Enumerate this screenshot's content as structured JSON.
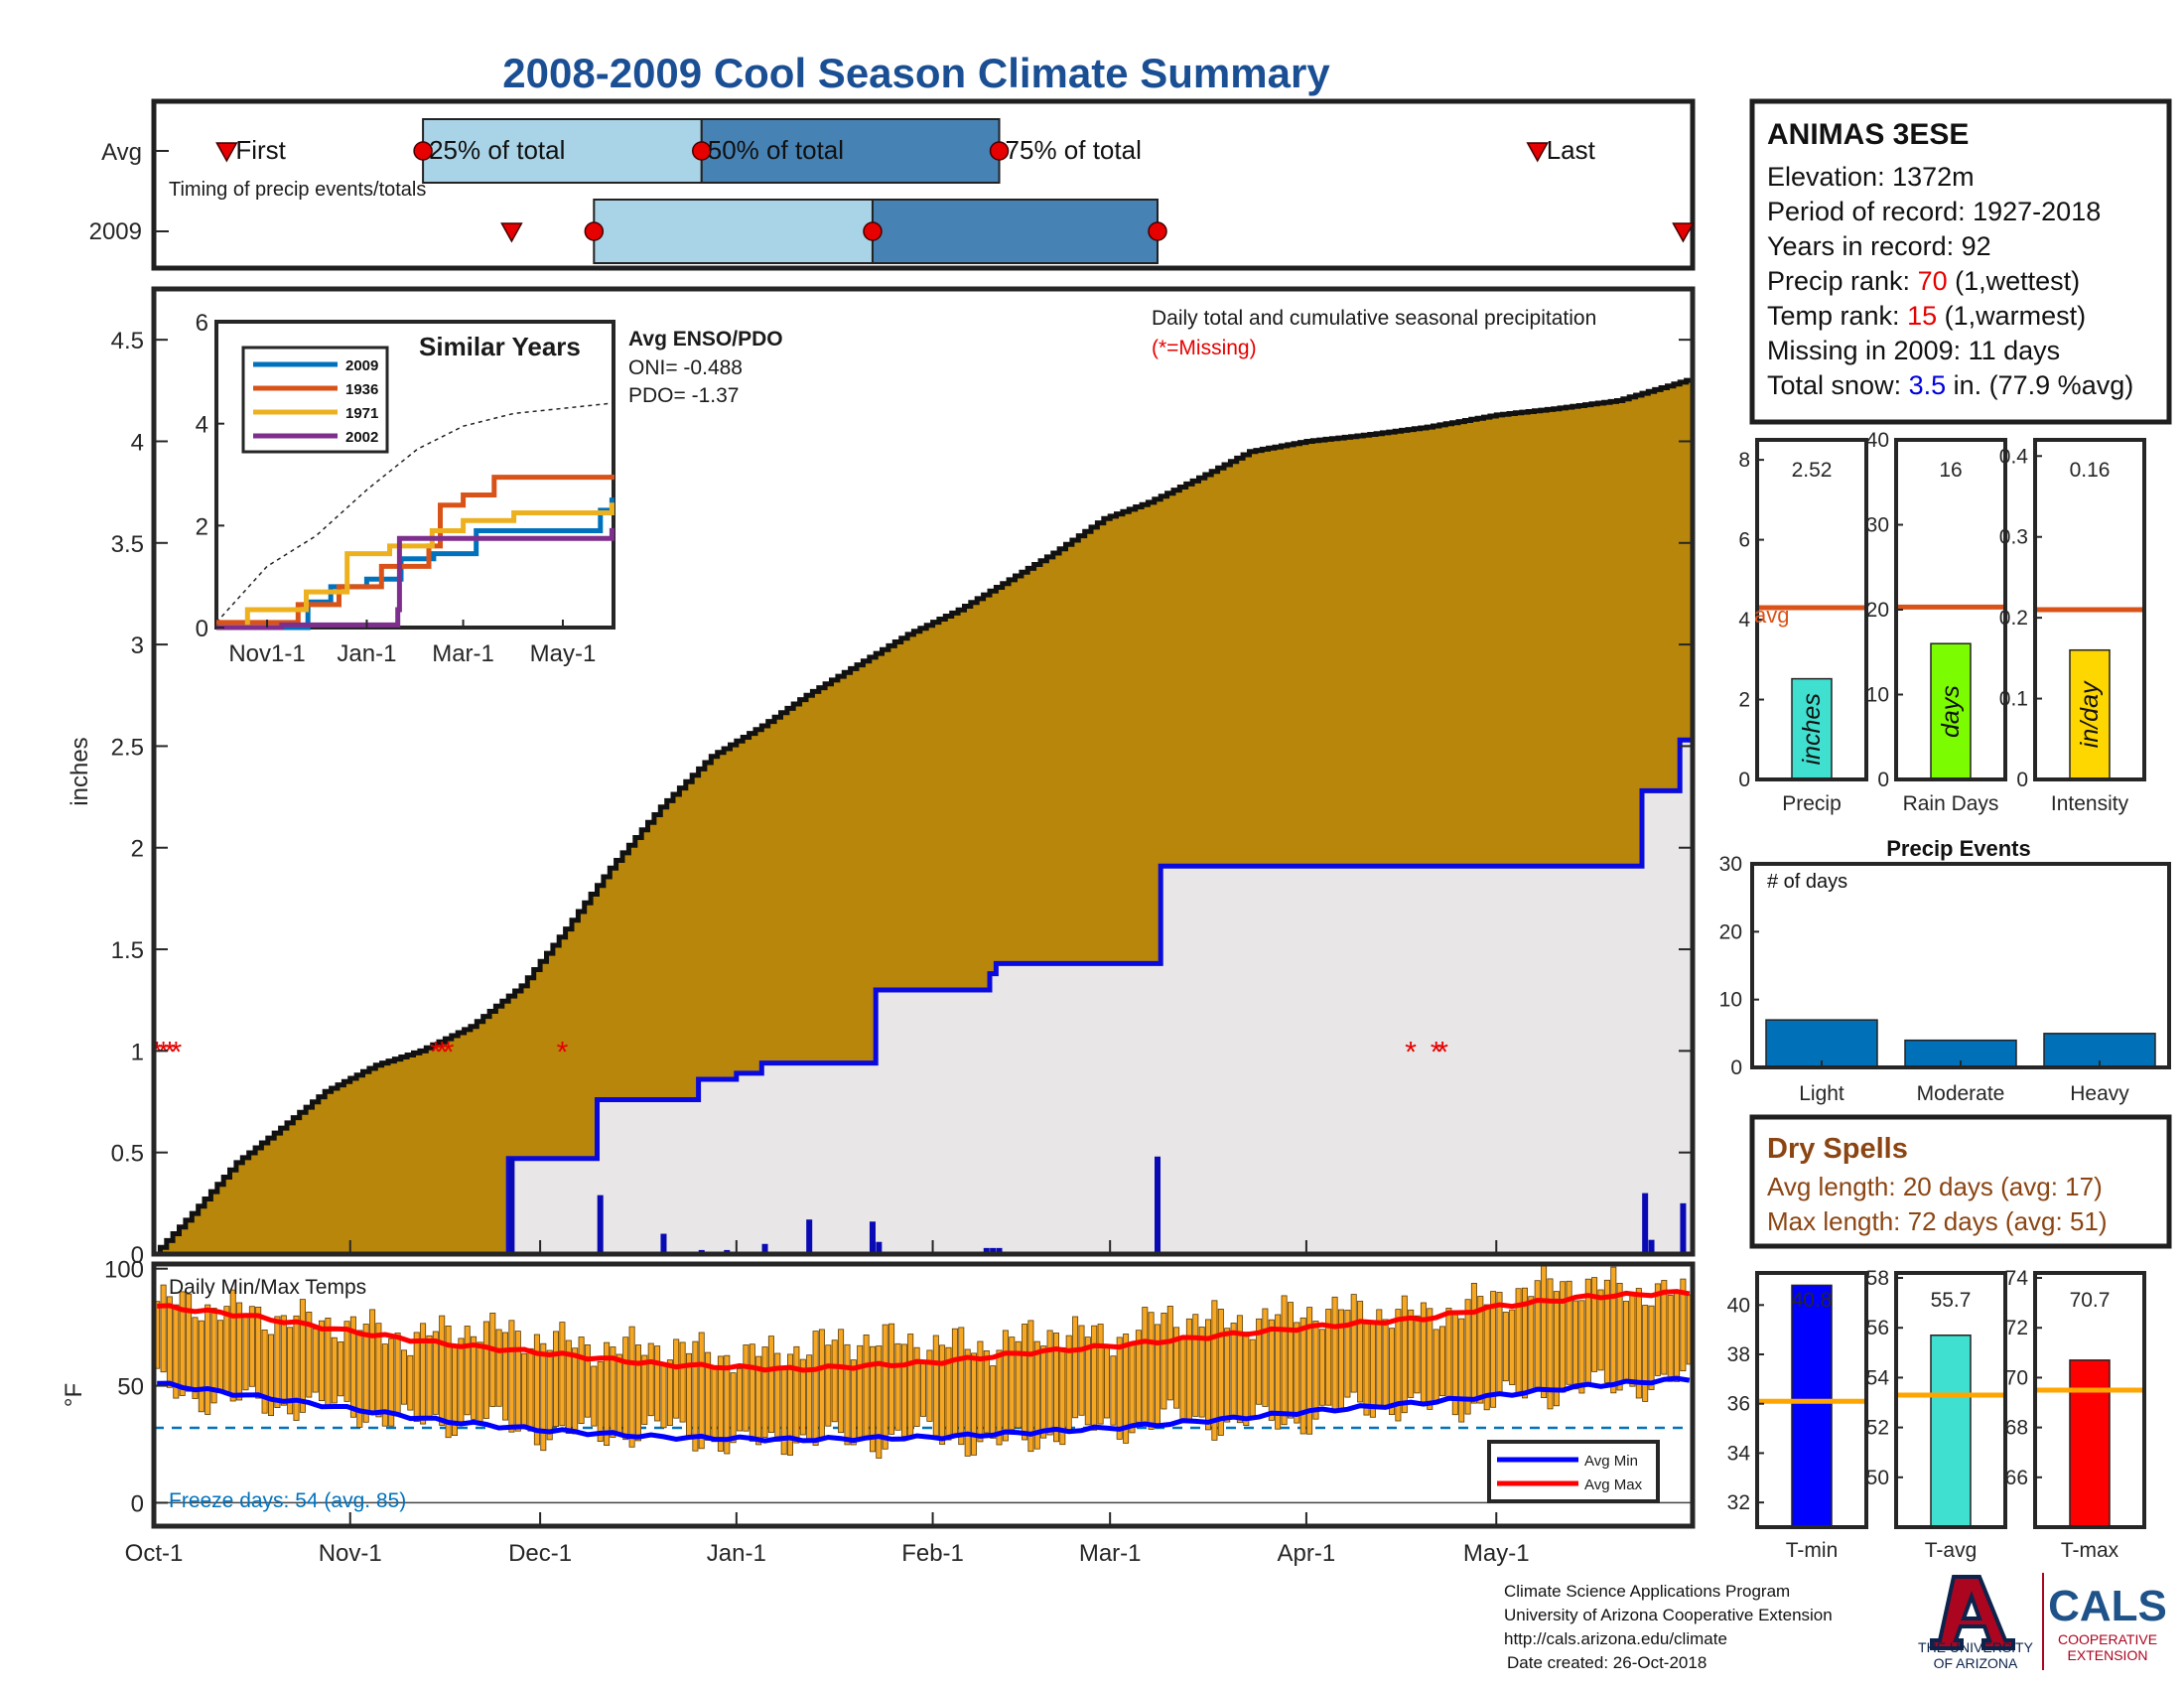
{
  "title": "2008-2009 Cool Season Climate Summary",
  "timing": {
    "row_labels": [
      "Avg",
      "2009"
    ],
    "label_timing": "Timing of precip events/totals",
    "label_first": "First",
    "label_25": "25% of total",
    "label_50": "50% of total",
    "label_75": "75% of total",
    "label_last": "Last",
    "avg": {
      "first": "2008-10-12",
      "p25": "2008-11-12",
      "p50": "2008-12-26",
      "p75": "2009-02-11",
      "last": "2009-05-07"
    },
    "y2009": {
      "first": "2008-11-26",
      "p25": "2008-12-09",
      "p50": "2009-01-22",
      "p75": "2009-03-08",
      "last": "2009-05-30"
    }
  },
  "station": {
    "name": "ANIMAS 3ESE",
    "elevation_text": "Elevation: 1372m",
    "period_text": "Period of record: 1927-2018",
    "years_text": "Years in record: 92",
    "precip_rank_label": "Precip rank: ",
    "precip_rank_value": "70",
    "precip_rank_note": " (1,wettest)",
    "temp_rank_label": "Temp rank: ",
    "temp_rank_value": "15",
    "temp_rank_note": " (1,warmest)",
    "missing_text": "Missing in 2009: 11 days",
    "snow_label": "Total snow: ",
    "snow_value": "3.5",
    "snow_note": " in. (77.9 %avg)"
  },
  "dry_spells": {
    "title": "Dry Spells",
    "avg_text": "Avg length: 20 days (avg: 17)",
    "max_text": "Max length: 72 days (avg: 51)"
  },
  "footer": {
    "line1": "Climate Science Applications Program",
    "line2": "University of Arizona Cooperative Extension",
    "line3": "http://cals.arizona.edu/climate",
    "line4": "Date created: 26-Oct-2018",
    "ua_line1": "THE UNIVERSITY",
    "ua_line2": "OF ARIZONA",
    "cals": "CALS",
    "cals_line1": "COOPERATIVE",
    "cals_line2": "EXTENSION"
  },
  "colors": {
    "title": "#1a4f94",
    "cumulative_fill": "#b8860b",
    "avg_fill": "#e8e6e6",
    "avg_line": "#0a0adc",
    "light_blue": "#a9d3e6",
    "mid_blue": "#4682b4",
    "marker_red": "#e60000",
    "tmin": "#0000ff",
    "tavg": "#40e0d0",
    "tmax": "#ff0000",
    "temp_bar": "#f5a623",
    "avg_ref": "#d95319",
    "freeze_text": "#0072bd"
  },
  "chart_data": [
    {
      "id": "precip-main",
      "type": "area",
      "x_type": "date",
      "ylabel": "inches",
      "ylim": [
        0,
        4.75
      ],
      "yticks": [
        0,
        0.5,
        1,
        1.5,
        2,
        2.5,
        3,
        3.5,
        4,
        4.5
      ],
      "xticks": [
        "Oct-1",
        "Nov-1",
        "Dec-1",
        "Jan-1",
        "Feb-1",
        "Mar-1",
        "Apr-1",
        "May-1"
      ],
      "xtick_dates": [
        "2008-10-01",
        "2008-11-01",
        "2008-12-01",
        "2009-01-01",
        "2009-02-01",
        "2009-03-01",
        "2009-04-01",
        "2009-05-01"
      ],
      "xlim": [
        "2008-10-01",
        "2009-05-31"
      ],
      "annotation": "Daily total and cumulative seasonal precipitation",
      "annotation_missing": "(*=Missing)",
      "avg_cumulative": {
        "name": "Avg cumulative",
        "x": [
          "2008-10-01",
          "2008-10-07",
          "2008-10-14",
          "2008-10-21",
          "2008-10-28",
          "2008-11-05",
          "2008-11-12",
          "2008-11-20",
          "2008-11-28",
          "2008-12-05",
          "2008-12-12",
          "2008-12-20",
          "2008-12-28",
          "2009-01-05",
          "2009-01-12",
          "2009-01-20",
          "2009-01-28",
          "2009-02-05",
          "2009-02-12",
          "2009-02-20",
          "2009-02-28",
          "2009-03-07",
          "2009-03-15",
          "2009-03-23",
          "2009-04-01",
          "2009-04-10",
          "2009-04-20",
          "2009-05-01",
          "2009-05-10",
          "2009-05-20",
          "2009-05-31"
        ],
        "y": [
          0.0,
          0.2,
          0.45,
          0.62,
          0.8,
          0.93,
          1.0,
          1.12,
          1.32,
          1.6,
          1.9,
          2.2,
          2.45,
          2.6,
          2.75,
          2.9,
          3.05,
          3.17,
          3.3,
          3.45,
          3.62,
          3.7,
          3.82,
          3.95,
          4.0,
          4.03,
          4.07,
          4.13,
          4.16,
          4.2,
          4.3
        ]
      },
      "cumulative_2009": {
        "name": "2009 cumulative",
        "x": [
          "2008-10-01",
          "2008-11-25",
          "2008-11-26",
          "2008-12-09",
          "2008-12-10",
          "2008-12-20",
          "2008-12-26",
          "2009-01-01",
          "2009-01-05",
          "2009-01-22",
          "2009-01-23",
          "2009-02-10",
          "2009-02-11",
          "2009-03-08",
          "2009-03-09",
          "2009-05-23",
          "2009-05-24",
          "2009-05-29",
          "2009-05-30",
          "2009-05-31"
        ],
        "y": [
          0.0,
          0.0,
          0.47,
          0.47,
          0.76,
          0.76,
          0.86,
          0.89,
          0.94,
          0.94,
          1.3,
          1.38,
          1.43,
          1.43,
          1.91,
          1.91,
          2.28,
          2.28,
          2.53,
          2.53
        ]
      },
      "daily_2009": {
        "name": "Daily total",
        "dates": [
          "2008-11-26",
          "2008-12-10",
          "2008-12-20",
          "2008-12-26",
          "2008-12-30",
          "2009-01-05",
          "2009-01-12",
          "2009-01-22",
          "2009-01-23",
          "2009-02-09",
          "2009-02-10",
          "2009-02-11",
          "2009-03-08",
          "2009-05-24",
          "2009-05-25",
          "2009-05-30"
        ],
        "values": [
          0.47,
          0.29,
          0.1,
          0.02,
          0.02,
          0.05,
          0.17,
          0.16,
          0.06,
          0.03,
          0.03,
          0.03,
          0.48,
          0.3,
          0.07,
          0.25
        ]
      },
      "missing_days": [
        "2008-10-01",
        "2008-10-02",
        "2008-10-03",
        "2008-10-04",
        "2008-11-14",
        "2008-11-15",
        "2008-11-16",
        "2008-12-04",
        "2009-04-17",
        "2009-04-21",
        "2009-04-22"
      ],
      "inset": {
        "title": "Similar Years",
        "ylim": [
          0,
          6
        ],
        "yticks": [
          0,
          2,
          4,
          6
        ],
        "xticks": [
          "Nov1-1",
          "Jan-1",
          "Mar-1",
          "May-1"
        ],
        "xtick_dates": [
          "2008-11-01",
          "2009-01-01",
          "2009-03-01",
          "2009-05-01"
        ],
        "enso_title": "Avg ENSO/PDO",
        "oni_text": "ONI= -0.488",
        "pdo_text": "PDO= -1.37",
        "avg_line_x": [
          "2008-10-01",
          "2008-11-01",
          "2008-12-01",
          "2009-01-01",
          "2009-02-01",
          "2009-03-01",
          "2009-04-01",
          "2009-05-01",
          "2009-05-31"
        ],
        "avg_line_y": [
          0.1,
          1.2,
          1.8,
          2.7,
          3.5,
          3.95,
          4.2,
          4.3,
          4.4
        ],
        "series": [
          {
            "name": "2009",
            "color": "#0072bd",
            "x": [
              "2008-10-01",
              "2008-11-26",
              "2008-12-10",
              "2009-01-01",
              "2009-01-22",
              "2009-02-11",
              "2009-03-09",
              "2009-05-24",
              "2009-05-31"
            ],
            "y": [
              0.0,
              0.5,
              0.8,
              0.95,
              1.35,
              1.45,
              1.9,
              2.3,
              2.55
            ]
          },
          {
            "name": "1936",
            "color": "#d95319",
            "x": [
              "2008-10-01",
              "2008-11-20",
              "2008-12-15",
              "2009-01-10",
              "2009-02-08",
              "2009-02-15",
              "2009-03-01",
              "2009-03-20",
              "2009-05-31"
            ],
            "y": [
              0.1,
              0.45,
              0.8,
              1.2,
              1.6,
              2.4,
              2.6,
              2.95,
              3.0
            ]
          },
          {
            "name": "1971",
            "color": "#edb120",
            "x": [
              "2008-10-01",
              "2008-10-20",
              "2008-11-25",
              "2008-12-20",
              "2009-01-15",
              "2009-02-10",
              "2009-03-01",
              "2009-04-01",
              "2009-05-31"
            ],
            "y": [
              0.0,
              0.35,
              0.7,
              1.45,
              1.6,
              1.9,
              2.1,
              2.25,
              2.45
            ]
          },
          {
            "name": "2002",
            "color": "#7e2f8e",
            "x": [
              "2008-10-01",
              "2008-11-10",
              "2009-01-20",
              "2009-01-21",
              "2009-05-31"
            ],
            "y": [
              0.0,
              0.05,
              0.35,
              1.75,
              1.95
            ]
          }
        ]
      }
    },
    {
      "id": "temps",
      "type": "bar",
      "x_type": "date",
      "title": "Daily Min/Max Temps",
      "ylabel": "°F",
      "ylim": [
        -10,
        102
      ],
      "yticks": [
        0,
        50,
        100
      ],
      "freeze_line": 32,
      "freeze_text": "Freeze days: 54 (avg. 85)",
      "legend": [
        "Avg Min",
        "Avg Max"
      ],
      "avg_max": {
        "x": [
          "2008-10-01",
          "2008-10-15",
          "2008-11-01",
          "2008-11-15",
          "2008-12-01",
          "2008-12-20",
          "2009-01-10",
          "2009-02-01",
          "2009-02-15",
          "2009-03-01",
          "2009-03-20",
          "2009-04-01",
          "2009-04-20",
          "2009-05-01",
          "2009-05-15",
          "2009-05-31"
        ],
        "y": [
          84,
          80,
          73,
          68,
          64,
          59,
          57,
          60,
          64,
          67,
          72,
          75,
          79,
          84,
          88,
          90
        ]
      },
      "avg_min": {
        "x": [
          "2008-10-01",
          "2008-10-15",
          "2008-11-01",
          "2008-11-15",
          "2008-12-01",
          "2008-12-20",
          "2009-01-10",
          "2009-02-01",
          "2009-02-15",
          "2009-03-01",
          "2009-03-20",
          "2009-04-01",
          "2009-04-20",
          "2009-05-01",
          "2009-05-15",
          "2009-05-31"
        ],
        "y": [
          51,
          46,
          40,
          35,
          31,
          28,
          27,
          28,
          30,
          32,
          36,
          39,
          43,
          46,
          50,
          53
        ]
      },
      "daily_max_anchor_x": [
        "2008-10-01",
        "2008-10-10",
        "2008-10-20",
        "2008-11-01",
        "2008-11-10",
        "2008-11-20",
        "2008-12-01",
        "2008-12-10",
        "2008-12-20",
        "2009-01-01",
        "2009-01-10",
        "2009-01-20",
        "2009-02-01",
        "2009-02-10",
        "2009-02-20",
        "2009-03-01",
        "2009-03-10",
        "2009-03-20",
        "2009-04-01",
        "2009-04-10",
        "2009-04-20",
        "2009-05-01",
        "2009-05-10",
        "2009-05-20",
        "2009-05-31"
      ],
      "daily_max_anchor_y": [
        86,
        84,
        79,
        76,
        70,
        75,
        70,
        66,
        67,
        62,
        66,
        70,
        68,
        67,
        74,
        70,
        80,
        77,
        82,
        82,
        80,
        88,
        94,
        92,
        88
      ],
      "daily_min_anchor_x": [
        "2008-10-01",
        "2008-10-10",
        "2008-10-20",
        "2008-11-01",
        "2008-11-10",
        "2008-11-20",
        "2008-12-01",
        "2008-12-10",
        "2008-12-20",
        "2009-01-01",
        "2009-01-10",
        "2009-01-20",
        "2009-02-01",
        "2009-02-10",
        "2009-02-20",
        "2009-03-01",
        "2009-03-10",
        "2009-03-20",
        "2009-04-01",
        "2009-04-10",
        "2009-04-20",
        "2009-05-01",
        "2009-05-10",
        "2009-05-20",
        "2009-05-31"
      ],
      "daily_min_anchor_y": [
        50,
        44,
        42,
        40,
        34,
        36,
        30,
        29,
        32,
        24,
        28,
        26,
        30,
        24,
        30,
        32,
        36,
        34,
        36,
        42,
        40,
        44,
        48,
        50,
        52
      ]
    },
    {
      "id": "precip-stats",
      "type": "bar",
      "panels": [
        {
          "category": "Precip",
          "value": 2.52,
          "value_text": "2.52",
          "bar_label": "inches",
          "avg": 4.3,
          "avg_label": "avg",
          "ylim": [
            0,
            8.5
          ],
          "yticks": [
            0,
            2,
            4,
            6,
            8
          ],
          "color": "#40e0d0"
        },
        {
          "category": "Rain Days",
          "value": 16,
          "value_text": "16",
          "bar_label": "days",
          "avg": 20.3,
          "ylim": [
            0,
            40
          ],
          "yticks": [
            0,
            10,
            20,
            30,
            40
          ],
          "color": "#7cfc00"
        },
        {
          "category": "Intensity",
          "value": 0.16,
          "value_text": "0.16",
          "bar_label": "in/day",
          "avg": 0.21,
          "ylim": [
            0,
            0.42
          ],
          "yticks": [
            0,
            0.1,
            0.2,
            0.3,
            0.4
          ],
          "color": "#ffd700"
        }
      ]
    },
    {
      "id": "precip-events",
      "type": "bar",
      "title": "Precip Events",
      "annotation": "# of days",
      "categories": [
        "Light",
        "Moderate",
        "Heavy"
      ],
      "values": [
        7,
        4,
        5
      ],
      "ylim": [
        0,
        30
      ],
      "yticks": [
        0,
        10,
        20,
        30
      ],
      "color": "#0070b8"
    },
    {
      "id": "temp-stats",
      "type": "bar",
      "panels": [
        {
          "category": "T-min",
          "value": 40.8,
          "value_text": "40.8",
          "avg": 36.1,
          "ylim": [
            31,
            41.3
          ],
          "yticks": [
            32,
            34,
            36,
            38,
            40
          ],
          "color": "#0000ff"
        },
        {
          "category": "T-avg",
          "value": 55.7,
          "value_text": "55.7",
          "avg": 53.3,
          "ylim": [
            48,
            58.2
          ],
          "yticks": [
            50,
            52,
            54,
            56,
            58
          ],
          "color": "#40e0d0"
        },
        {
          "category": "T-max",
          "value": 70.7,
          "value_text": "70.7",
          "avg": 69.5,
          "ylim": [
            64,
            74.2
          ],
          "yticks": [
            66,
            68,
            70,
            72,
            74
          ],
          "color": "#ff0000"
        }
      ]
    }
  ]
}
